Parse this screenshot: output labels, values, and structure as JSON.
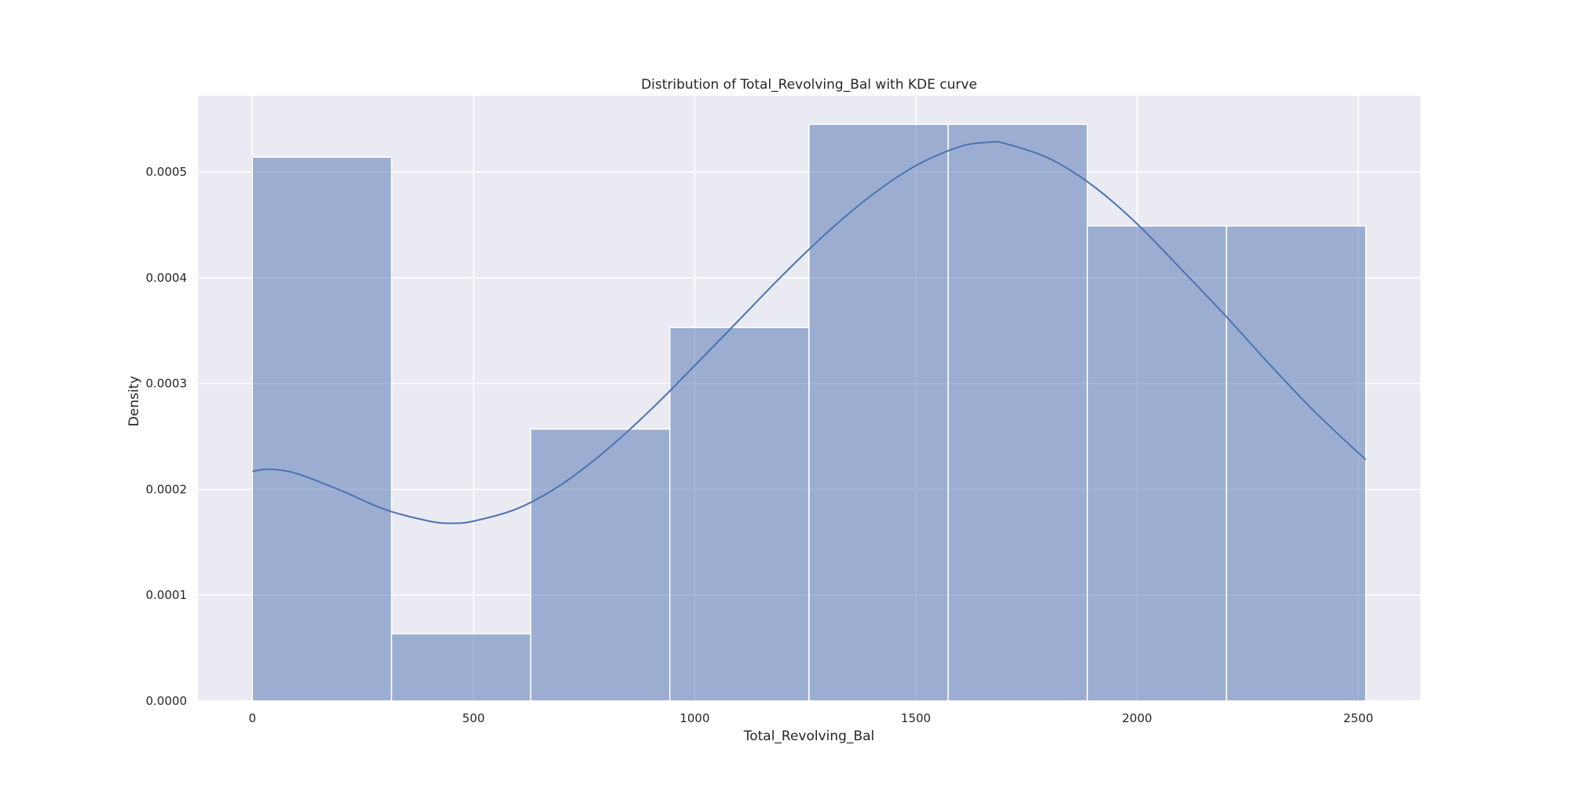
{
  "chart_data": {
    "type": "bar",
    "title": "Distribution of Total_Revolving_Bal with KDE curve",
    "xlabel": "Total_Revolving_Bal",
    "ylabel": "Density",
    "xlim": [
      -123,
      2640
    ],
    "ylim": [
      0,
      0.000572
    ],
    "xticks": [
      0,
      500,
      1000,
      1500,
      2000,
      2500
    ],
    "xtick_labels": [
      "0",
      "500",
      "1000",
      "1500",
      "2000",
      "2500"
    ],
    "yticks": [
      0,
      0.0001,
      0.0002,
      0.0003,
      0.0004,
      0.0005
    ],
    "ytick_labels": [
      "0.0000",
      "0.0001",
      "0.0002",
      "0.0003",
      "0.0004",
      "0.0005"
    ],
    "grid": true,
    "bins": [
      {
        "x0": 0,
        "x1": 314.6,
        "density": 0.000514
      },
      {
        "x0": 314.6,
        "x1": 629.2,
        "density": 6.35e-05
      },
      {
        "x0": 629.2,
        "x1": 943.8,
        "density": 0.000257
      },
      {
        "x0": 943.8,
        "x1": 1258.4,
        "density": 0.000353
      },
      {
        "x0": 1258.4,
        "x1": 1573.0,
        "density": 0.000545
      },
      {
        "x0": 1573.0,
        "x1": 1887.6,
        "density": 0.000545
      },
      {
        "x0": 1887.6,
        "x1": 2202.2,
        "density": 0.000449
      },
      {
        "x0": 2202.2,
        "x1": 2517,
        "density": 0.000449
      }
    ],
    "kde": {
      "x": [
        0,
        40,
        100,
        200,
        300,
        400,
        450,
        500,
        600,
        700,
        800,
        900,
        1000,
        1100,
        1200,
        1300,
        1400,
        1500,
        1600,
        1665,
        1700,
        1800,
        1900,
        2000,
        2100,
        2200,
        2300,
        2400,
        2517
      ],
      "y": [
        0.000217,
        0.000219,
        0.000215,
        0.000199,
        0.000181,
        0.00017,
        0.000168,
        0.00017,
        0.000182,
        0.000205,
        0.000237,
        0.000275,
        0.000317,
        0.00036,
        0.000403,
        0.000443,
        0.000478,
        0.000506,
        0.000524,
        0.000528,
        0.000527,
        0.000513,
        0.000487,
        0.000451,
        0.000408,
        0.000364,
        0.000318,
        0.000274,
        0.000228
      ]
    },
    "colors": {
      "background": "#eaeaf2",
      "grid": "#ffffff",
      "bar_fill": "#4c72b0",
      "bar_opacity": 0.5,
      "bar_edge": "#ffffff",
      "kde_line": "#4c72b0"
    }
  }
}
